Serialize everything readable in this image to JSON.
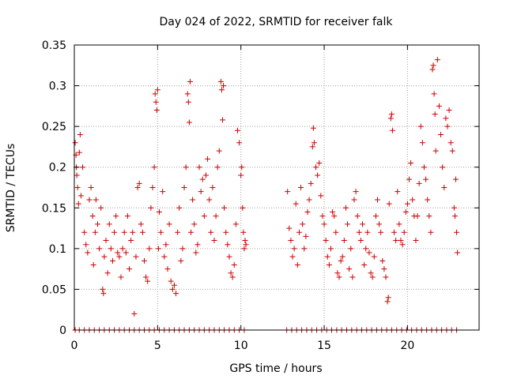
{
  "chart_data": {
    "type": "scatter",
    "title": "Day 024 of 2022, SRMTID for receiver falk",
    "xlabel": "GPS time / hours",
    "ylabel": "SRMTID / TECUs",
    "xlim": [
      0,
      24.3
    ],
    "ylim": [
      0,
      0.35
    ],
    "x_ticks": [
      0,
      5,
      10,
      15,
      20
    ],
    "x_tick_labels": [
      "0",
      "5",
      "10",
      "15",
      "20"
    ],
    "y_ticks": [
      0,
      0.05,
      0.1,
      0.15,
      0.2,
      0.25,
      0.3,
      0.35
    ],
    "y_tick_labels": [
      "0",
      "0.05",
      "0.1",
      "0.15",
      "0.2",
      "0.25",
      "0.3",
      "0.35"
    ],
    "grid": true,
    "legend": "none",
    "marker": "plus",
    "colors": {
      "points": "#cc0000",
      "grid": "#a0a0a0",
      "axes": "#000000"
    },
    "series": [
      {
        "points": [
          [
            0.05,
            0.23
          ],
          [
            0.1,
            0.215
          ],
          [
            0.12,
            0.2
          ],
          [
            0.15,
            0.19
          ],
          [
            0.2,
            0.175
          ],
          [
            0.25,
            0.155
          ],
          [
            0.3,
            0.218
          ],
          [
            0.35,
            0.24
          ],
          [
            0.4,
            0.165
          ],
          [
            0.5,
            0.2
          ],
          [
            0.6,
            0.12
          ],
          [
            0.7,
            0.105
          ],
          [
            0.8,
            0.095
          ],
          [
            0.9,
            0.16
          ],
          [
            1.0,
            0.175
          ],
          [
            1.1,
            0.14
          ],
          [
            1.15,
            0.08
          ],
          [
            1.25,
            0.12
          ],
          [
            1.3,
            0.16
          ],
          [
            1.4,
            0.13
          ],
          [
            1.5,
            0.1
          ],
          [
            1.6,
            0.15
          ],
          [
            1.7,
            0.05
          ],
          [
            1.75,
            0.045
          ],
          [
            1.8,
            0.09
          ],
          [
            1.9,
            0.11
          ],
          [
            2.0,
            0.07
          ],
          [
            2.1,
            0.13
          ],
          [
            2.2,
            0.1
          ],
          [
            2.3,
            0.085
          ],
          [
            2.4,
            0.12
          ],
          [
            2.5,
            0.14
          ],
          [
            2.6,
            0.095
          ],
          [
            2.7,
            0.09
          ],
          [
            2.8,
            0.065
          ],
          [
            2.9,
            0.1
          ],
          [
            3.0,
            0.12
          ],
          [
            3.1,
            0.095
          ],
          [
            3.2,
            0.14
          ],
          [
            3.3,
            0.075
          ],
          [
            3.4,
            0.11
          ],
          [
            3.5,
            0.12
          ],
          [
            3.6,
            0.02
          ],
          [
            3.7,
            0.09
          ],
          [
            3.8,
            0.175
          ],
          [
            3.9,
            0.18
          ],
          [
            4.0,
            0.13
          ],
          [
            4.1,
            0.12
          ],
          [
            4.2,
            0.085
          ],
          [
            4.3,
            0.065
          ],
          [
            4.4,
            0.06
          ],
          [
            4.5,
            0.1
          ],
          [
            4.6,
            0.15
          ],
          [
            4.7,
            0.175
          ],
          [
            4.8,
            0.2
          ],
          [
            4.85,
            0.29
          ],
          [
            4.9,
            0.28
          ],
          [
            4.95,
            0.27
          ],
          [
            5.0,
            0.295
          ],
          [
            5.05,
            0.1
          ],
          [
            5.1,
            0.145
          ],
          [
            5.2,
            0.12
          ],
          [
            5.3,
            0.17
          ],
          [
            5.4,
            0.09
          ],
          [
            5.5,
            0.105
          ],
          [
            5.6,
            0.075
          ],
          [
            5.7,
            0.13
          ],
          [
            5.8,
            0.06
          ],
          [
            5.9,
            0.05
          ],
          [
            6.0,
            0.055
          ],
          [
            6.1,
            0.045
          ],
          [
            6.2,
            0.12
          ],
          [
            6.3,
            0.15
          ],
          [
            6.4,
            0.085
          ],
          [
            6.5,
            0.1
          ],
          [
            6.6,
            0.175
          ],
          [
            6.7,
            0.2
          ],
          [
            6.8,
            0.29
          ],
          [
            6.85,
            0.28
          ],
          [
            6.9,
            0.255
          ],
          [
            6.95,
            0.305
          ],
          [
            7.0,
            0.12
          ],
          [
            7.1,
            0.16
          ],
          [
            7.2,
            0.13
          ],
          [
            7.3,
            0.095
          ],
          [
            7.4,
            0.105
          ],
          [
            7.5,
            0.2
          ],
          [
            7.6,
            0.17
          ],
          [
            7.7,
            0.185
          ],
          [
            7.8,
            0.14
          ],
          [
            7.9,
            0.19
          ],
          [
            8.0,
            0.21
          ],
          [
            8.1,
            0.16
          ],
          [
            8.2,
            0.12
          ],
          [
            8.3,
            0.175
          ],
          [
            8.4,
            0.11
          ],
          [
            8.5,
            0.14
          ],
          [
            8.6,
            0.2
          ],
          [
            8.7,
            0.22
          ],
          [
            8.8,
            0.305
          ],
          [
            8.85,
            0.295
          ],
          [
            8.9,
            0.258
          ],
          [
            8.95,
            0.3
          ],
          [
            9.0,
            0.15
          ],
          [
            9.1,
            0.12
          ],
          [
            9.2,
            0.105
          ],
          [
            9.3,
            0.09
          ],
          [
            9.4,
            0.07
          ],
          [
            9.5,
            0.065
          ],
          [
            9.6,
            0.08
          ],
          [
            9.7,
            0.13
          ],
          [
            9.8,
            0.245
          ],
          [
            9.9,
            0.23
          ],
          [
            10.0,
            0.19
          ],
          [
            10.05,
            0.2
          ],
          [
            10.1,
            0.15
          ],
          [
            10.15,
            0.12
          ],
          [
            10.2,
            0.1
          ],
          [
            10.25,
            0.11
          ],
          [
            10.3,
            0.105
          ],
          [
            12.8,
            0.17
          ],
          [
            12.9,
            0.125
          ],
          [
            13.0,
            0.11
          ],
          [
            13.1,
            0.09
          ],
          [
            13.2,
            0.1
          ],
          [
            13.3,
            0.155
          ],
          [
            13.4,
            0.08
          ],
          [
            13.5,
            0.12
          ],
          [
            13.6,
            0.175
          ],
          [
            13.7,
            0.13
          ],
          [
            13.8,
            0.1
          ],
          [
            13.9,
            0.115
          ],
          [
            14.0,
            0.145
          ],
          [
            14.1,
            0.16
          ],
          [
            14.2,
            0.18
          ],
          [
            14.3,
            0.225
          ],
          [
            14.35,
            0.248
          ],
          [
            14.4,
            0.23
          ],
          [
            14.5,
            0.2
          ],
          [
            14.6,
            0.19
          ],
          [
            14.7,
            0.205
          ],
          [
            14.8,
            0.165
          ],
          [
            14.9,
            0.14
          ],
          [
            15.0,
            0.13
          ],
          [
            15.1,
            0.11
          ],
          [
            15.2,
            0.09
          ],
          [
            15.3,
            0.08
          ],
          [
            15.4,
            0.1
          ],
          [
            15.5,
            0.145
          ],
          [
            15.6,
            0.14
          ],
          [
            15.7,
            0.12
          ],
          [
            15.8,
            0.07
          ],
          [
            15.9,
            0.065
          ],
          [
            16.0,
            0.085
          ],
          [
            16.1,
            0.09
          ],
          [
            16.2,
            0.11
          ],
          [
            16.3,
            0.15
          ],
          [
            16.4,
            0.13
          ],
          [
            16.5,
            0.075
          ],
          [
            16.6,
            0.1
          ],
          [
            16.7,
            0.065
          ],
          [
            16.8,
            0.16
          ],
          [
            16.9,
            0.17
          ],
          [
            17.0,
            0.14
          ],
          [
            17.1,
            0.12
          ],
          [
            17.2,
            0.11
          ],
          [
            17.3,
            0.13
          ],
          [
            17.4,
            0.08
          ],
          [
            17.5,
            0.1
          ],
          [
            17.6,
            0.12
          ],
          [
            17.7,
            0.095
          ],
          [
            17.8,
            0.07
          ],
          [
            17.9,
            0.065
          ],
          [
            18.0,
            0.09
          ],
          [
            18.1,
            0.14
          ],
          [
            18.2,
            0.16
          ],
          [
            18.3,
            0.13
          ],
          [
            18.4,
            0.12
          ],
          [
            18.5,
            0.085
          ],
          [
            18.6,
            0.075
          ],
          [
            18.7,
            0.065
          ],
          [
            18.8,
            0.035
          ],
          [
            18.85,
            0.04
          ],
          [
            18.9,
            0.155
          ],
          [
            19.0,
            0.26
          ],
          [
            19.05,
            0.265
          ],
          [
            19.1,
            0.245
          ],
          [
            19.2,
            0.12
          ],
          [
            19.3,
            0.11
          ],
          [
            19.4,
            0.17
          ],
          [
            19.5,
            0.13
          ],
          [
            19.6,
            0.11
          ],
          [
            19.7,
            0.105
          ],
          [
            19.8,
            0.12
          ],
          [
            19.9,
            0.145
          ],
          [
            20.0,
            0.155
          ],
          [
            20.1,
            0.185
          ],
          [
            20.2,
            0.205
          ],
          [
            20.3,
            0.16
          ],
          [
            20.4,
            0.14
          ],
          [
            20.5,
            0.11
          ],
          [
            20.6,
            0.14
          ],
          [
            20.7,
            0.18
          ],
          [
            20.8,
            0.25
          ],
          [
            20.9,
            0.23
          ],
          [
            21.0,
            0.2
          ],
          [
            21.1,
            0.185
          ],
          [
            21.2,
            0.16
          ],
          [
            21.3,
            0.14
          ],
          [
            21.4,
            0.12
          ],
          [
            21.5,
            0.32
          ],
          [
            21.55,
            0.325
          ],
          [
            21.6,
            0.29
          ],
          [
            21.65,
            0.265
          ],
          [
            21.7,
            0.22
          ],
          [
            21.8,
            0.332
          ],
          [
            21.9,
            0.275
          ],
          [
            22.0,
            0.24
          ],
          [
            22.1,
            0.2
          ],
          [
            22.2,
            0.175
          ],
          [
            22.3,
            0.26
          ],
          [
            22.4,
            0.25
          ],
          [
            22.5,
            0.27
          ],
          [
            22.6,
            0.23
          ],
          [
            22.7,
            0.22
          ],
          [
            22.8,
            0.15
          ],
          [
            22.85,
            0.14
          ],
          [
            22.9,
            0.185
          ],
          [
            22.95,
            0.12
          ],
          [
            23.0,
            0.095
          ]
        ]
      },
      {
        "points": [
          [
            0.05,
            0
          ],
          [
            0.3,
            0
          ],
          [
            0.6,
            0
          ],
          [
            0.9,
            0
          ],
          [
            1.2,
            0
          ],
          [
            1.5,
            0
          ],
          [
            1.8,
            0
          ],
          [
            2.1,
            0
          ],
          [
            2.4,
            0
          ],
          [
            2.7,
            0
          ],
          [
            3.0,
            0
          ],
          [
            3.3,
            0
          ],
          [
            3.6,
            0
          ],
          [
            3.9,
            0
          ],
          [
            4.2,
            0
          ],
          [
            4.5,
            0
          ],
          [
            4.8,
            0
          ],
          [
            5.1,
            0
          ],
          [
            5.4,
            0
          ],
          [
            5.7,
            0
          ],
          [
            6.0,
            0
          ],
          [
            6.3,
            0
          ],
          [
            6.6,
            0
          ],
          [
            6.9,
            0
          ],
          [
            7.2,
            0
          ],
          [
            7.5,
            0
          ],
          [
            7.8,
            0
          ],
          [
            8.1,
            0
          ],
          [
            8.4,
            0
          ],
          [
            8.7,
            0
          ],
          [
            9.0,
            0
          ],
          [
            9.3,
            0
          ],
          [
            9.6,
            0
          ],
          [
            9.9,
            0
          ],
          [
            10.2,
            0
          ],
          [
            12.75,
            0
          ],
          [
            13.05,
            0
          ],
          [
            13.35,
            0
          ],
          [
            13.65,
            0
          ],
          [
            13.95,
            0
          ],
          [
            14.25,
            0
          ],
          [
            14.55,
            0
          ],
          [
            14.85,
            0
          ],
          [
            15.15,
            0
          ],
          [
            15.45,
            0
          ],
          [
            15.75,
            0
          ],
          [
            16.05,
            0
          ],
          [
            16.35,
            0
          ],
          [
            16.65,
            0
          ],
          [
            16.95,
            0
          ],
          [
            17.25,
            0
          ],
          [
            17.55,
            0
          ],
          [
            17.85,
            0
          ],
          [
            18.15,
            0
          ],
          [
            18.45,
            0
          ],
          [
            18.75,
            0
          ],
          [
            19.05,
            0
          ],
          [
            19.35,
            0
          ],
          [
            19.65,
            0
          ],
          [
            19.95,
            0
          ],
          [
            20.25,
            0
          ],
          [
            20.55,
            0
          ],
          [
            20.85,
            0
          ],
          [
            21.15,
            0
          ],
          [
            21.45,
            0
          ],
          [
            21.75,
            0
          ],
          [
            22.05,
            0
          ],
          [
            22.35,
            0
          ],
          [
            22.65,
            0
          ],
          [
            22.95,
            0
          ]
        ]
      }
    ]
  }
}
